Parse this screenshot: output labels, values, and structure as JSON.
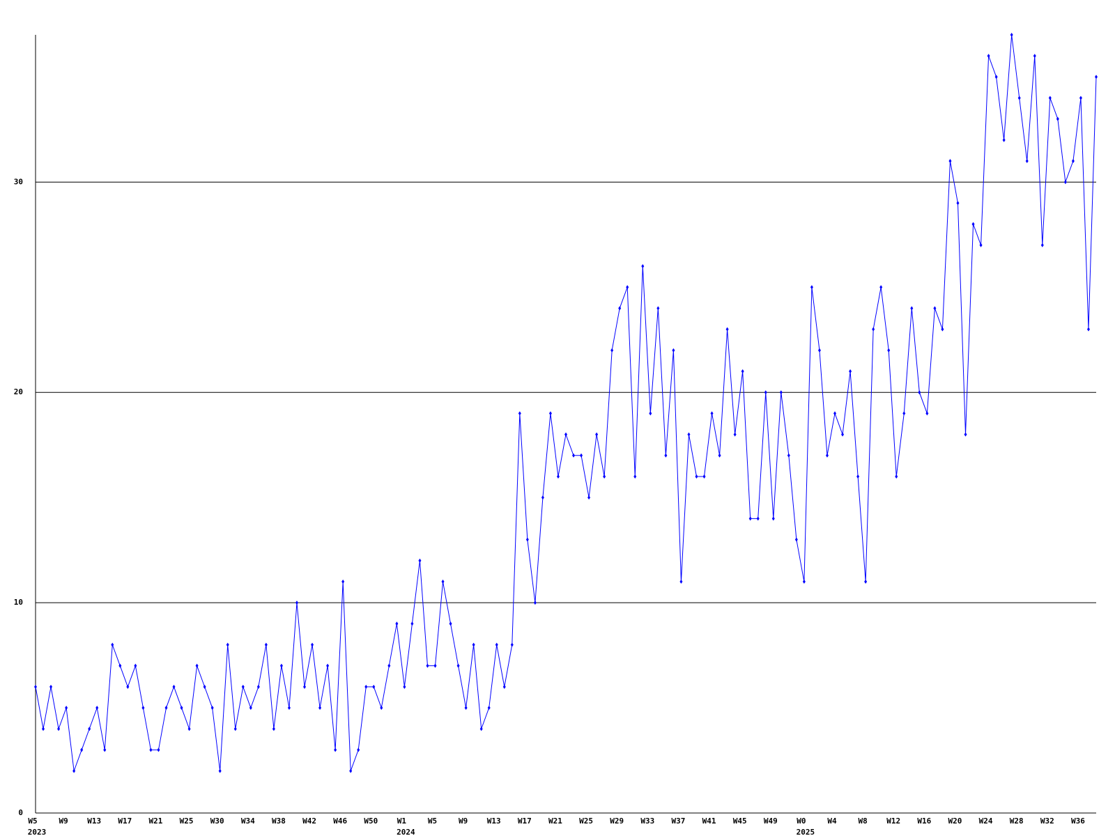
{
  "chart_data": {
    "type": "line",
    "categories": [
      "W5",
      null,
      null,
      null,
      "W9",
      null,
      null,
      null,
      "W13",
      null,
      null,
      null,
      "W17",
      null,
      null,
      null,
      "W21",
      null,
      null,
      null,
      "W25",
      null,
      null,
      null,
      "W30",
      null,
      null,
      null,
      "W34",
      null,
      null,
      null,
      "W38",
      null,
      null,
      null,
      "W42",
      null,
      null,
      null,
      "W46",
      null,
      null,
      null,
      "W50",
      null,
      null,
      null,
      "W1",
      null,
      null,
      null,
      "W5",
      null,
      null,
      null,
      "W9",
      null,
      null,
      null,
      "W13",
      null,
      null,
      null,
      "W17",
      null,
      null,
      null,
      "W21",
      null,
      null,
      null,
      "W25",
      null,
      null,
      null,
      "W29",
      null,
      null,
      null,
      "W33",
      null,
      null,
      null,
      "W37",
      null,
      null,
      null,
      "W41",
      null,
      null,
      null,
      "W45",
      null,
      null,
      null,
      "W49",
      null,
      null,
      null,
      "W0",
      null,
      null,
      null,
      "W4",
      null,
      null,
      null,
      "W8",
      null,
      null,
      null,
      "W12",
      null,
      null,
      null,
      "W16",
      null,
      null,
      null,
      "W20",
      null,
      null,
      null,
      "W24",
      null,
      null,
      null,
      "W28",
      null,
      null,
      null,
      "W32",
      null,
      null,
      null,
      "W36",
      null,
      null
    ],
    "year_labels": [
      {
        "label": "2023",
        "index": 0
      },
      {
        "label": "2024",
        "index": 48
      },
      {
        "label": "2025",
        "index": 100
      }
    ],
    "series": [
      {
        "color": "#0000ff",
        "values": [
          6,
          4,
          6,
          4,
          5,
          2,
          3,
          4,
          5,
          3,
          8,
          7,
          6,
          7,
          5,
          3,
          3,
          5,
          6,
          5,
          4,
          7,
          6,
          5,
          2,
          8,
          4,
          6,
          5,
          6,
          8,
          4,
          7,
          5,
          10,
          6,
          8,
          5,
          7,
          3,
          11,
          2,
          3,
          6,
          6,
          5,
          7,
          9,
          6,
          9,
          12,
          7,
          7,
          11,
          9,
          7,
          5,
          8,
          4,
          5,
          8,
          6,
          8,
          19,
          13,
          10,
          15,
          19,
          16,
          18,
          17,
          17,
          15,
          18,
          16,
          22,
          24,
          25,
          16,
          26,
          19,
          24,
          17,
          22,
          11,
          18,
          16,
          16,
          19,
          17,
          23,
          18,
          21,
          14,
          14,
          20,
          14,
          20,
          17,
          13,
          11,
          25,
          22,
          17,
          19,
          18,
          21,
          16,
          11,
          23,
          25,
          22,
          16,
          19,
          24,
          20,
          19,
          24,
          23,
          31,
          29,
          18,
          28,
          27,
          36,
          35,
          32,
          37,
          34,
          31,
          36,
          27,
          34,
          33,
          30,
          31,
          34,
          23,
          35
        ]
      }
    ],
    "ylim": [
      0,
      37
    ],
    "yticks": [
      0,
      10,
      20,
      30
    ],
    "grid": true
  }
}
